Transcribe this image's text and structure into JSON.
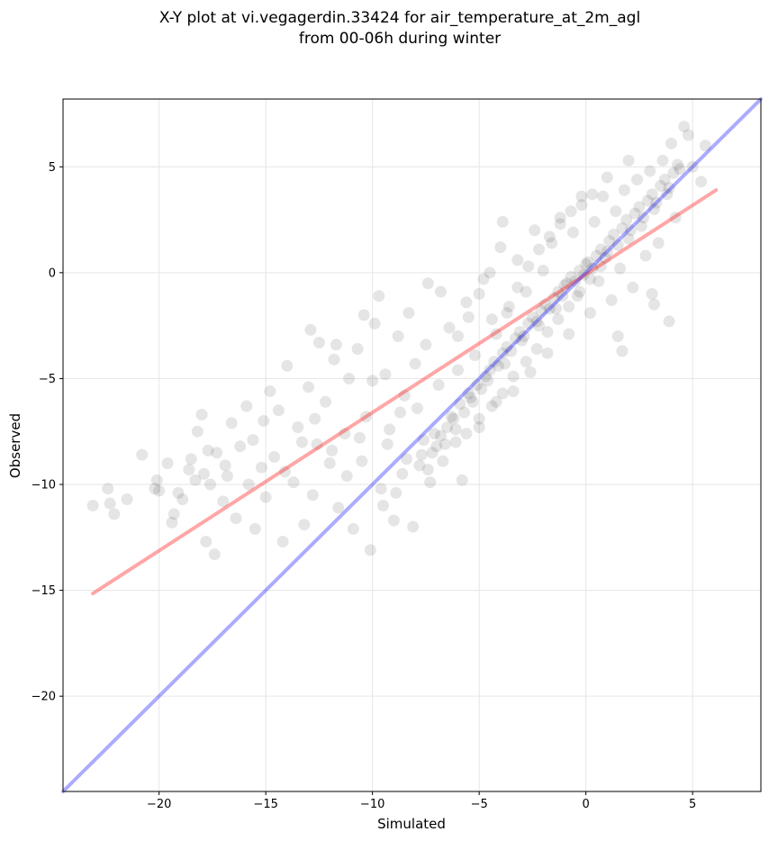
{
  "chart_data": {
    "type": "scatter",
    "title": "X-Y plot at vi.vegagerdin.33424 for air_temperature_at_2m_agl",
    "subtitle": "from 00-06h during winter",
    "xlabel": "Simulated",
    "ylabel": "Observed",
    "xlim": [
      -24.5,
      8.2
    ],
    "ylim": [
      -24.5,
      8.2
    ],
    "xticks": [
      -20,
      -15,
      -10,
      -5,
      0,
      5
    ],
    "yticks": [
      -20,
      -15,
      -10,
      -5,
      0,
      5
    ],
    "xtick_labels": [
      "−20",
      "−15",
      "−10",
      "−5",
      "0",
      "5"
    ],
    "ytick_labels": [
      "−20",
      "−15",
      "−10",
      "−5",
      "0",
      "5"
    ],
    "grid": true,
    "series": [
      {
        "kind": "points",
        "color": "#000000",
        "opacity": 0.1,
        "points": [
          [
            -23.1,
            -11.0
          ],
          [
            -22.3,
            -10.9
          ],
          [
            -22.1,
            -11.4
          ],
          [
            -22.4,
            -10.2
          ],
          [
            -21.5,
            -10.7
          ],
          [
            -20.2,
            -10.2
          ],
          [
            -20.0,
            -10.3
          ],
          [
            -20.1,
            -9.8
          ],
          [
            -19.6,
            -9.0
          ],
          [
            -19.1,
            -10.4
          ],
          [
            -19.3,
            -11.4
          ],
          [
            -18.9,
            -10.7
          ],
          [
            -18.6,
            -9.3
          ],
          [
            -18.5,
            -8.8
          ],
          [
            -18.2,
            -7.5
          ],
          [
            -18.0,
            -6.7
          ],
          [
            -17.9,
            -9.5
          ],
          [
            -17.6,
            -10.0
          ],
          [
            -17.3,
            -8.5
          ],
          [
            -17.0,
            -10.8
          ],
          [
            -16.8,
            -9.6
          ],
          [
            -16.6,
            -7.1
          ],
          [
            -16.4,
            -11.6
          ],
          [
            -16.2,
            -8.2
          ],
          [
            -15.9,
            -6.3
          ],
          [
            -15.6,
            -7.9
          ],
          [
            -15.2,
            -9.2
          ],
          [
            -15.0,
            -10.6
          ],
          [
            -14.8,
            -5.6
          ],
          [
            -14.6,
            -8.7
          ],
          [
            -14.4,
            -6.5
          ],
          [
            -14.2,
            -12.7
          ],
          [
            -14.0,
            -4.4
          ],
          [
            -13.7,
            -9.9
          ],
          [
            -13.5,
            -7.3
          ],
          [
            -13.2,
            -11.9
          ],
          [
            -13.0,
            -5.4
          ],
          [
            -12.8,
            -10.5
          ],
          [
            -12.6,
            -8.1
          ],
          [
            -12.5,
            -3.3
          ],
          [
            -12.2,
            -6.1
          ],
          [
            -12.0,
            -9.0
          ],
          [
            -11.8,
            -4.1
          ],
          [
            -11.6,
            -11.1
          ],
          [
            -11.3,
            -7.6
          ],
          [
            -11.1,
            -5.0
          ],
          [
            -10.9,
            -12.1
          ],
          [
            -10.7,
            -3.6
          ],
          [
            -10.5,
            -8.9
          ],
          [
            -10.3,
            -6.8
          ],
          [
            -10.1,
            -13.1
          ],
          [
            -9.9,
            -2.4
          ],
          [
            -9.6,
            -10.2
          ],
          [
            -9.4,
            -4.8
          ],
          [
            -9.2,
            -7.4
          ],
          [
            -9.0,
            -11.7
          ],
          [
            -8.8,
            -3.0
          ],
          [
            -8.6,
            -9.5
          ],
          [
            -8.5,
            -5.8
          ],
          [
            -8.3,
            -1.9
          ],
          [
            -8.1,
            -12.0
          ],
          [
            -7.9,
            -6.4
          ],
          [
            -7.7,
            -8.6
          ],
          [
            -7.5,
            -3.4
          ],
          [
            -7.3,
            -9.9
          ],
          [
            -7.1,
            -7.6
          ],
          [
            -6.9,
            -5.3
          ],
          [
            -6.8,
            -0.9
          ],
          [
            -6.6,
            -8.1
          ],
          [
            -6.4,
            -2.6
          ],
          [
            -6.2,
            -6.9
          ],
          [
            -6.0,
            -4.6
          ],
          [
            -5.8,
            -9.8
          ],
          [
            -5.6,
            -1.4
          ],
          [
            -5.4,
            -5.9
          ],
          [
            -5.2,
            -3.9
          ],
          [
            -5.0,
            -7.3
          ],
          [
            -4.8,
            -0.3
          ],
          [
            -4.6,
            -5.1
          ],
          [
            -4.4,
            -2.2
          ],
          [
            -4.2,
            -6.1
          ],
          [
            -4.0,
            1.2
          ],
          [
            -3.8,
            -4.3
          ],
          [
            -3.6,
            -1.6
          ],
          [
            -3.4,
            -5.6
          ],
          [
            -3.2,
            0.6
          ],
          [
            -3.0,
            -3.2
          ],
          [
            -2.8,
            -0.9
          ],
          [
            -2.6,
            -4.7
          ],
          [
            -2.4,
            2.0
          ],
          [
            -2.2,
            -2.5
          ],
          [
            -2.0,
            0.1
          ],
          [
            -1.8,
            -3.8
          ],
          [
            -1.6,
            1.4
          ],
          [
            -1.4,
            -1.7
          ],
          [
            -1.2,
            2.6
          ],
          [
            -1.0,
            -0.6
          ],
          [
            -0.8,
            -2.9
          ],
          [
            -0.6,
            1.9
          ],
          [
            -0.4,
            -1.1
          ],
          [
            -0.2,
            3.2
          ],
          [
            0.0,
            0.4
          ],
          [
            0.2,
            -1.9
          ],
          [
            0.4,
            2.4
          ],
          [
            0.6,
            -0.4
          ],
          [
            0.8,
            3.6
          ],
          [
            1.0,
            1.0
          ],
          [
            1.2,
            -1.3
          ],
          [
            1.4,
            2.9
          ],
          [
            1.6,
            0.2
          ],
          [
            1.8,
            3.9
          ],
          [
            2.0,
            1.6
          ],
          [
            2.2,
            -0.7
          ],
          [
            2.4,
            4.4
          ],
          [
            2.6,
            2.2
          ],
          [
            2.8,
            0.8
          ],
          [
            3.0,
            4.8
          ],
          [
            3.2,
            3.0
          ],
          [
            3.4,
            1.4
          ],
          [
            3.6,
            5.3
          ],
          [
            3.8,
            3.7
          ],
          [
            4.0,
            6.1
          ],
          [
            4.2,
            2.6
          ],
          [
            4.4,
            4.9
          ],
          [
            4.6,
            6.9
          ],
          [
            -18.3,
            -9.8
          ],
          [
            -17.7,
            -8.4
          ],
          [
            -16.9,
            -9.1
          ],
          [
            -15.8,
            -10.0
          ],
          [
            -15.1,
            -7.0
          ],
          [
            -14.1,
            -9.4
          ],
          [
            -13.3,
            -8.0
          ],
          [
            -12.7,
            -6.9
          ],
          [
            -11.9,
            -8.4
          ],
          [
            -11.2,
            -9.6
          ],
          [
            -10.6,
            -7.8
          ],
          [
            -10.0,
            -5.1
          ],
          [
            -9.3,
            -8.1
          ],
          [
            -8.7,
            -6.6
          ],
          [
            -8.0,
            -4.3
          ],
          [
            -7.6,
            -7.9
          ],
          [
            -7.2,
            -8.5
          ],
          [
            -7.0,
            -8.2
          ],
          [
            -6.8,
            -7.7
          ],
          [
            -6.5,
            -7.3
          ],
          [
            -6.3,
            -6.8
          ],
          [
            -6.1,
            -7.4
          ],
          [
            -5.9,
            -6.2
          ],
          [
            -5.7,
            -6.6
          ],
          [
            -5.5,
            -5.7
          ],
          [
            -5.3,
            -6.1
          ],
          [
            -5.1,
            -5.3
          ],
          [
            -4.9,
            -5.5
          ],
          [
            -4.7,
            -4.9
          ],
          [
            -4.5,
            -4.6
          ],
          [
            -4.3,
            -4.2
          ],
          [
            -4.1,
            -4.4
          ],
          [
            -3.9,
            -3.8
          ],
          [
            -3.7,
            -3.5
          ],
          [
            -3.5,
            -3.7
          ],
          [
            -3.3,
            -3.1
          ],
          [
            -3.1,
            -2.8
          ],
          [
            -2.9,
            -3.0
          ],
          [
            -2.7,
            -2.4
          ],
          [
            -2.5,
            -2.1
          ],
          [
            -2.3,
            -2.3
          ],
          [
            -2.1,
            -1.8
          ],
          [
            -1.9,
            -1.5
          ],
          [
            -1.7,
            -1.7
          ],
          [
            -1.5,
            -1.2
          ],
          [
            -1.3,
            -0.9
          ],
          [
            -1.1,
            -1.1
          ],
          [
            -0.9,
            -0.5
          ],
          [
            -0.7,
            -0.2
          ],
          [
            -0.5,
            -0.4
          ],
          [
            -0.3,
            0.1
          ],
          [
            -0.1,
            -0.1
          ],
          [
            0.1,
            0.5
          ],
          [
            0.3,
            0.2
          ],
          [
            0.5,
            0.8
          ],
          [
            0.7,
            1.1
          ],
          [
            0.9,
            0.7
          ],
          [
            1.1,
            1.5
          ],
          [
            1.3,
            1.8
          ],
          [
            1.5,
            1.3
          ],
          [
            1.7,
            2.1
          ],
          [
            1.9,
            2.5
          ],
          [
            2.1,
            2.0
          ],
          [
            2.3,
            2.8
          ],
          [
            2.5,
            3.1
          ],
          [
            2.7,
            2.6
          ],
          [
            2.9,
            3.4
          ],
          [
            3.1,
            3.7
          ],
          [
            3.3,
            3.3
          ],
          [
            3.5,
            4.1
          ],
          [
            3.7,
            4.4
          ],
          [
            3.9,
            4.0
          ],
          [
            4.1,
            4.7
          ],
          [
            4.3,
            5.1
          ],
          [
            5.0,
            5.0
          ],
          [
            5.6,
            6.0
          ],
          [
            4.8,
            6.5
          ],
          [
            5.4,
            4.3
          ],
          [
            2.0,
            5.3
          ],
          [
            1.0,
            4.5
          ],
          [
            -8.4,
            -8.8
          ],
          [
            -7.8,
            -9.1
          ],
          [
            -7.4,
            -9.3
          ],
          [
            -6.7,
            -8.9
          ],
          [
            -6.1,
            -8.0
          ],
          [
            -5.6,
            -7.6
          ],
          [
            -5.0,
            -6.9
          ],
          [
            -4.4,
            -6.3
          ],
          [
            -3.9,
            -5.7
          ],
          [
            -3.4,
            -4.9
          ],
          [
            -2.8,
            -4.2
          ],
          [
            -2.3,
            -3.6
          ],
          [
            -1.8,
            -2.8
          ],
          [
            -1.3,
            -2.2
          ],
          [
            -0.8,
            -1.6
          ],
          [
            -0.3,
            -0.9
          ],
          [
            0.2,
            -0.3
          ],
          [
            0.7,
            0.3
          ],
          [
            -9.5,
            -11.0
          ],
          [
            -8.9,
            -10.4
          ],
          [
            -4.2,
            -2.9
          ],
          [
            -3.7,
            -1.9
          ],
          [
            -3.2,
            -0.7
          ],
          [
            -2.7,
            0.3
          ],
          [
            -2.2,
            1.1
          ],
          [
            -1.7,
            1.7
          ],
          [
            -1.2,
            2.3
          ],
          [
            -0.7,
            2.9
          ],
          [
            -0.2,
            3.6
          ],
          [
            0.3,
            3.7
          ],
          [
            -6.0,
            -3.0
          ],
          [
            -5.5,
            -2.1
          ],
          [
            -5.0,
            -1.0
          ],
          [
            -4.5,
            0.0
          ],
          [
            -3.9,
            2.4
          ],
          [
            -12.9,
            -2.7
          ],
          [
            -11.7,
            -3.4
          ],
          [
            -10.4,
            -2.0
          ],
          [
            -9.7,
            -1.1
          ],
          [
            -7.4,
            -0.5
          ],
          [
            -20.8,
            -8.6
          ],
          [
            -19.4,
            -11.8
          ],
          [
            -17.4,
            -13.3
          ],
          [
            -17.8,
            -12.7
          ],
          [
            -15.5,
            -12.1
          ],
          [
            1.5,
            -3.0
          ],
          [
            1.7,
            -3.7
          ],
          [
            3.2,
            -1.5
          ],
          [
            3.9,
            -2.3
          ],
          [
            3.1,
            -1.0
          ]
        ]
      },
      {
        "kind": "line",
        "color": "#ff0000",
        "opacity": 0.35,
        "from": [
          -23.1,
          -15.15
        ],
        "to": [
          6.1,
          3.9
        ]
      },
      {
        "kind": "line",
        "color": "#0000ff",
        "opacity": 0.33,
        "from": [
          -24.5,
          -24.5
        ],
        "to": [
          8.2,
          8.2
        ]
      }
    ]
  }
}
